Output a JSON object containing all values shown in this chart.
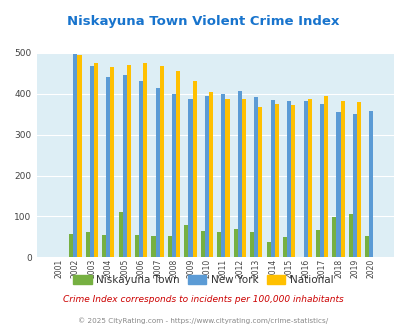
{
  "title": "Niskayuna Town Violent Crime Index",
  "title_color": "#1874cd",
  "years": [
    2001,
    2002,
    2003,
    2004,
    2005,
    2006,
    2007,
    2008,
    2009,
    2010,
    2011,
    2012,
    2013,
    2014,
    2015,
    2016,
    2017,
    2018,
    2019,
    2020
  ],
  "niskayuna": [
    0,
    58,
    62,
    55,
    112,
    55,
    53,
    53,
    80,
    65,
    62,
    70,
    62,
    37,
    50,
    0,
    68,
    98,
    107,
    53
  ],
  "new_york": [
    0,
    497,
    467,
    441,
    445,
    432,
    415,
    400,
    388,
    395,
    400,
    406,
    391,
    384,
    381,
    381,
    376,
    355,
    350,
    357
  ],
  "national": [
    0,
    494,
    475,
    465,
    469,
    474,
    468,
    455,
    432,
    404,
    388,
    387,
    368,
    376,
    373,
    386,
    394,
    382,
    379,
    0
  ],
  "niskayuna_color": "#76b041",
  "new_york_color": "#5b9bd5",
  "national_color": "#ffc000",
  "plot_bg_color": "#ddeef5",
  "ylim": [
    0,
    500
  ],
  "yticks": [
    0,
    100,
    200,
    300,
    400,
    500
  ],
  "footer_note": "Crime Index corresponds to incidents per 100,000 inhabitants",
  "footer_credit": "© 2025 CityRating.com - https://www.cityrating.com/crime-statistics/",
  "legend_labels": [
    "Niskayuna Town",
    "New York",
    "National"
  ],
  "bar_width": 0.25
}
